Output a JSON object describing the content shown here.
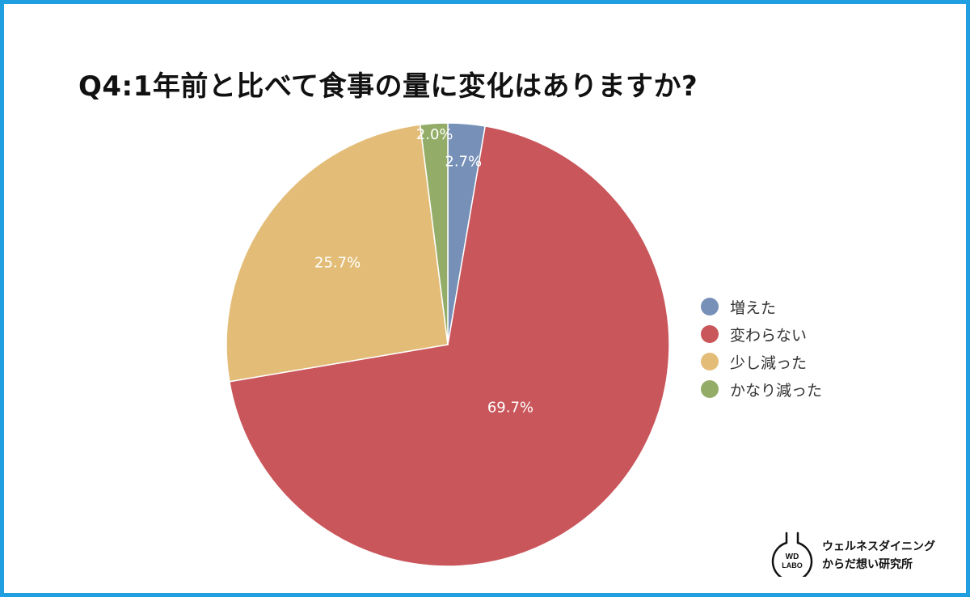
{
  "header": {
    "title": "Q4:1年前と比べて食事の量に変化はありますか?"
  },
  "chart_data": {
    "type": "pie",
    "title": "Q4:1年前と比べて食事の量に変化はありますか?",
    "start_angle_deg": 0,
    "direction": "clockwise",
    "legend_position": "right",
    "slices": [
      {
        "name": "増えた",
        "value": 2.7,
        "label": "2.7%",
        "color": "#7690b8"
      },
      {
        "name": "変わらない",
        "value": 69.7,
        "label": "69.7%",
        "color": "#c9565b"
      },
      {
        "name": "少し減った",
        "value": 25.7,
        "label": "25.7%",
        "color": "#e3bd78"
      },
      {
        "name": "かなり減った",
        "value": 2.0,
        "label": "2.0%",
        "color": "#93ad68"
      }
    ]
  },
  "branding": {
    "logo_line1": "WD",
    "logo_line2": "LABO",
    "name_line1": "ウェルネスダイニング",
    "name_line2": "からだ想い研究所"
  }
}
